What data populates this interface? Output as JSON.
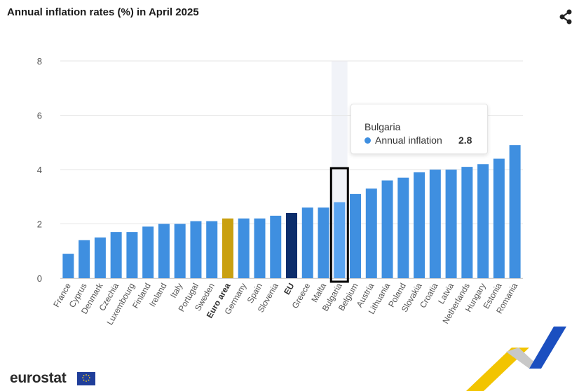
{
  "title": "Annual inflation rates (%) in April 2025",
  "icons": {
    "share": "share-icon",
    "eu_flag": "eu-flag-icon",
    "brand_deco": "chevron-decoration-icon"
  },
  "colors": {
    "bar": "#3f8fe0",
    "bar_highlight": "#5aa4f0",
    "euro_area": "#c9a010",
    "eu": "#0c2d6b",
    "hover_band": "#f1f3f8",
    "grid": "#e6e6e6",
    "selection_box": "#000000"
  },
  "chart_data": {
    "type": "bar",
    "title": "Annual inflation rates (%) in April 2025",
    "xlabel": "",
    "ylabel": "",
    "ylim": [
      0,
      8
    ],
    "yticks": [
      0,
      2,
      4,
      6,
      8
    ],
    "grid": true,
    "categories": [
      "France",
      "Cyprus",
      "Denmark",
      "Czechia",
      "Luxembourg",
      "Finland",
      "Ireland",
      "Italy",
      "Portugal",
      "Sweden",
      "Euro area",
      "Germany",
      "Spain",
      "Slovenia",
      "EU",
      "Greece",
      "Malta",
      "Bulgaria",
      "Belgium",
      "Austria",
      "Lithuania",
      "Poland",
      "Slovakia",
      "Croatia",
      "Latvia",
      "Netherlands",
      "Hungary",
      "Estonia",
      "Romania"
    ],
    "values": [
      0.9,
      1.4,
      1.5,
      1.7,
      1.7,
      1.9,
      2.0,
      2.0,
      2.1,
      2.1,
      2.2,
      2.2,
      2.2,
      2.3,
      2.4,
      2.6,
      2.6,
      2.8,
      3.1,
      3.3,
      3.6,
      3.7,
      3.9,
      4.0,
      4.0,
      4.1,
      4.2,
      4.4,
      4.9
    ],
    "series": [
      {
        "name": "Annual inflation"
      }
    ],
    "bold_categories": [
      "Euro area",
      "EU"
    ],
    "highlight": "Bulgaria"
  },
  "tooltip": {
    "title": "Bulgaria",
    "series_label": "Annual inflation",
    "value": "2.8"
  },
  "logo": {
    "text": "eurostat"
  }
}
